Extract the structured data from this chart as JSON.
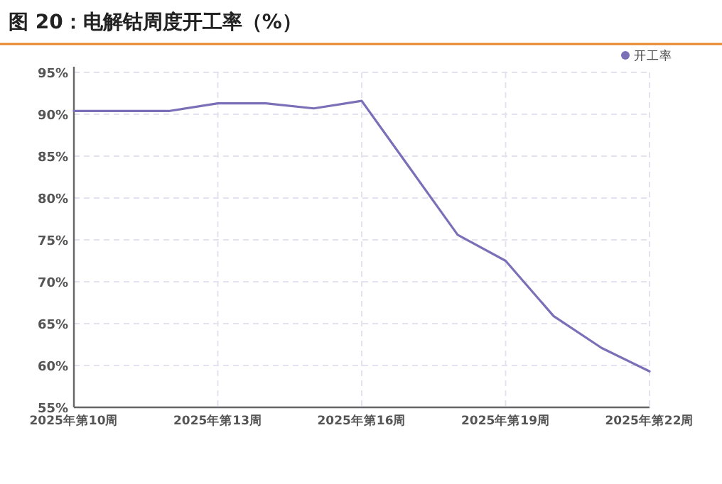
{
  "chart_data": {
    "type": "line",
    "title": "图 20：电解钴周度开工率（%）",
    "categories": [
      "2025年第10周",
      null,
      null,
      "2025年第13周",
      null,
      null,
      "2025年第16周",
      null,
      null,
      "2025年第19周",
      null,
      null,
      "2025年第22周"
    ],
    "series": [
      {
        "name": "开工率",
        "color": "#7b6fb8",
        "values": [
          90.4,
          90.4,
          90.4,
          91.3,
          91.3,
          90.7,
          91.6,
          83.6,
          75.6,
          72.5,
          65.9,
          62.1,
          59.3
        ]
      }
    ],
    "ylim": [
      55,
      95
    ],
    "yticks": [
      {
        "value": 55,
        "label": "55%"
      },
      {
        "value": 60,
        "label": "60%"
      },
      {
        "value": 65,
        "label": "65%"
      },
      {
        "value": 70,
        "label": "70%"
      },
      {
        "value": 75,
        "label": "75%"
      },
      {
        "value": 80,
        "label": "80%"
      },
      {
        "value": 85,
        "label": "85%"
      },
      {
        "value": 90,
        "label": "90%"
      },
      {
        "value": 95,
        "label": "95%"
      }
    ],
    "grid": true,
    "legend": "top right",
    "marker": "none",
    "line_style": "solid"
  }
}
